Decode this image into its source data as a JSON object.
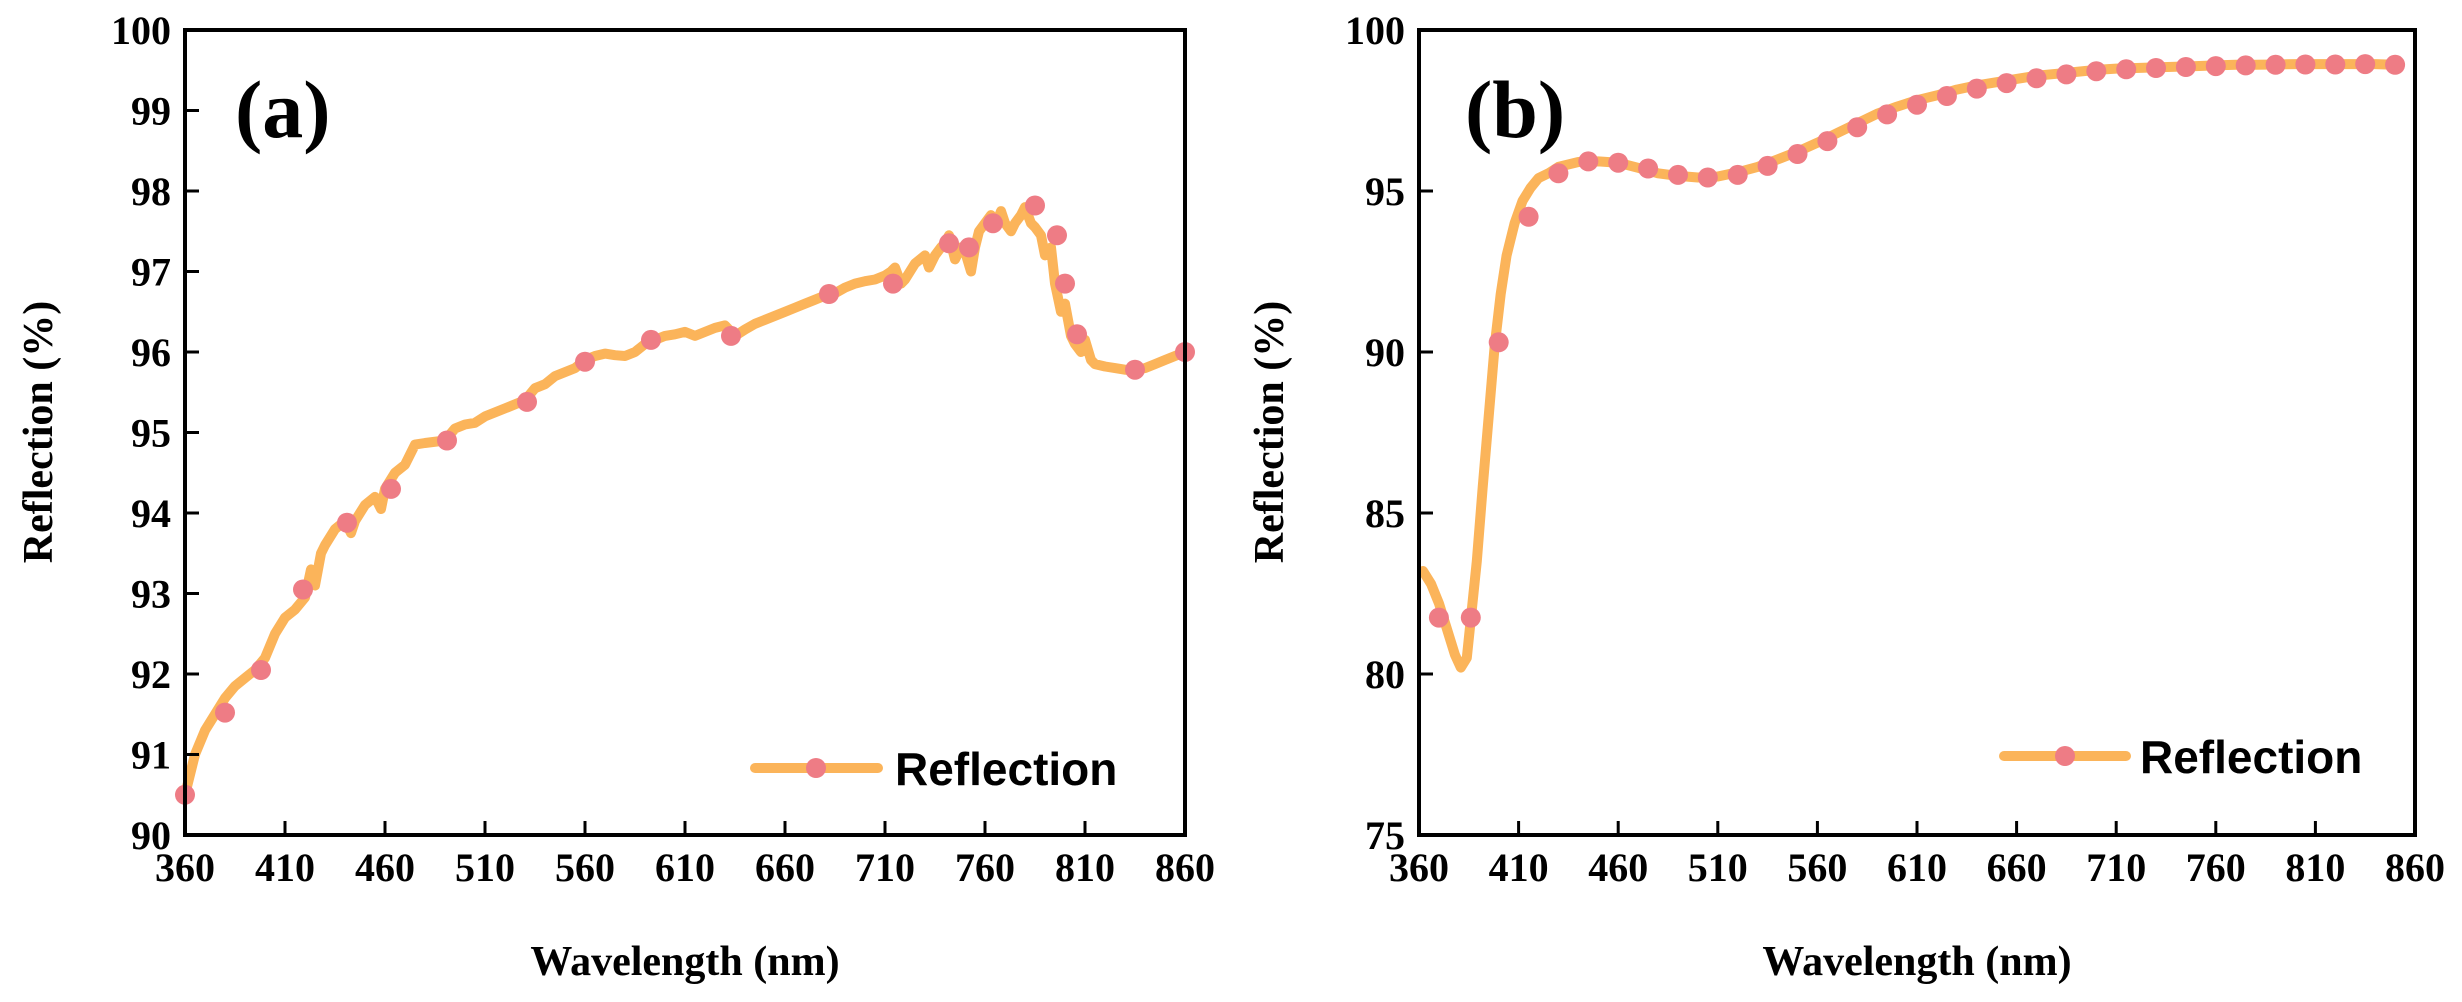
{
  "colors": {
    "line": "#FBB45A",
    "marker": "#EE7C85",
    "axis": "#000000"
  },
  "chart_data": [
    {
      "type": "line",
      "panel_label": "(a)",
      "xlabel": "Wavelength (nm)",
      "ylabel": "Reflection (%)",
      "xlim": [
        360,
        860
      ],
      "ylim": [
        90,
        100
      ],
      "xticks": [
        "360",
        "410",
        "460",
        "510",
        "560",
        "610",
        "660",
        "710",
        "760",
        "810",
        "860"
      ],
      "yticks": [
        "90",
        "91",
        "92",
        "93",
        "94",
        "95",
        "96",
        "97",
        "98",
        "99",
        "100"
      ],
      "legend": {
        "label": "Reflection",
        "position": "bottom-right"
      },
      "series": [
        {
          "name": "Reflection",
          "x": [
            360,
            365,
            370,
            375,
            380,
            385,
            390,
            395,
            400,
            405,
            410,
            415,
            420,
            423,
            425,
            428,
            430,
            435,
            440,
            443,
            445,
            450,
            455,
            458,
            460,
            465,
            470,
            475,
            480,
            490,
            495,
            500,
            505,
            510,
            515,
            520,
            530,
            535,
            540,
            545,
            550,
            555,
            560,
            565,
            570,
            575,
            580,
            585,
            590,
            595,
            600,
            605,
            610,
            615,
            620,
            625,
            630,
            635,
            640,
            645,
            650,
            655,
            660,
            665,
            670,
            675,
            680,
            685,
            690,
            695,
            700,
            705,
            710,
            713,
            715,
            718,
            720,
            725,
            730,
            732,
            735,
            738,
            740,
            742,
            745,
            748,
            750,
            753,
            755,
            757,
            760,
            763,
            765,
            768,
            770,
            773,
            775,
            778,
            780,
            783,
            785,
            788,
            790,
            793,
            795,
            798,
            800,
            803,
            805,
            808,
            810,
            813,
            815,
            820,
            825,
            830,
            835,
            840,
            845,
            850,
            855,
            860
          ],
          "y": [
            90.5,
            91.0,
            91.3,
            91.5,
            91.7,
            91.85,
            91.95,
            92.05,
            92.2,
            92.5,
            92.7,
            92.8,
            92.95,
            93.3,
            93.1,
            93.5,
            93.6,
            93.8,
            93.9,
            93.75,
            93.9,
            94.1,
            94.2,
            94.05,
            94.3,
            94.5,
            94.6,
            94.85,
            94.87,
            94.9,
            95.05,
            95.1,
            95.12,
            95.2,
            95.25,
            95.3,
            95.4,
            95.55,
            95.6,
            95.7,
            95.75,
            95.8,
            95.9,
            95.95,
            95.98,
            95.96,
            95.95,
            96.0,
            96.1,
            96.15,
            96.2,
            96.22,
            96.25,
            96.2,
            96.25,
            96.3,
            96.33,
            96.2,
            96.28,
            96.35,
            96.4,
            96.45,
            96.5,
            96.55,
            96.6,
            96.65,
            96.7,
            96.73,
            96.8,
            96.85,
            96.88,
            96.9,
            96.95,
            97.0,
            97.05,
            96.85,
            96.9,
            97.1,
            97.2,
            97.05,
            97.2,
            97.3,
            97.35,
            97.45,
            97.15,
            97.3,
            97.25,
            97.0,
            97.3,
            97.5,
            97.6,
            97.7,
            97.55,
            97.75,
            97.6,
            97.5,
            97.6,
            97.7,
            97.8,
            97.6,
            97.55,
            97.45,
            97.2,
            97.3,
            96.85,
            96.5,
            96.6,
            96.2,
            96.1,
            96.0,
            96.15,
            95.9,
            95.85,
            95.82,
            95.8,
            95.78,
            95.78,
            95.8,
            95.85,
            95.9,
            95.95,
            96.0
          ]
        }
      ],
      "markers": {
        "x": [
          360,
          380,
          398,
          419,
          441,
          463,
          491,
          531,
          560,
          593,
          633,
          682,
          714,
          742,
          752,
          764,
          785,
          796,
          800,
          806,
          835,
          860
        ],
        "y": [
          90.5,
          91.52,
          92.05,
          93.05,
          93.88,
          94.3,
          94.9,
          95.38,
          95.88,
          96.15,
          96.2,
          96.72,
          96.85,
          97.35,
          97.3,
          97.6,
          97.82,
          97.45,
          96.85,
          96.22,
          95.78,
          96.0
        ]
      }
    },
    {
      "type": "line",
      "panel_label": "(b)",
      "xlabel": "Wavelength (nm)",
      "ylabel": "Reflection (%)",
      "xlim": [
        360,
        860
      ],
      "ylim": [
        75,
        100
      ],
      "xticks": [
        "360",
        "410",
        "460",
        "510",
        "560",
        "610",
        "660",
        "710",
        "760",
        "810",
        "860"
      ],
      "yticks": [
        "75",
        "80",
        "85",
        "90",
        "95",
        "100"
      ],
      "legend": {
        "label": "Reflection",
        "position": "bottom-right"
      },
      "series": [
        {
          "name": "Reflection",
          "x": [
            362,
            366,
            370,
            374,
            378,
            381,
            384,
            386,
            389,
            392,
            395,
            398,
            401,
            404,
            408,
            412,
            416,
            420,
            425,
            430,
            440,
            450,
            460,
            470,
            480,
            490,
            500,
            510,
            520,
            530,
            540,
            550,
            560,
            570,
            580,
            590,
            600,
            610,
            620,
            630,
            640,
            650,
            660,
            670,
            680,
            690,
            700,
            710,
            720,
            730,
            740,
            750,
            760,
            770,
            780,
            790,
            800,
            810,
            820,
            830,
            840,
            850
          ],
          "y": [
            83.2,
            82.8,
            82.2,
            81.4,
            80.6,
            80.2,
            80.5,
            81.7,
            83.5,
            85.8,
            88.0,
            90.2,
            91.8,
            93.0,
            94.0,
            94.7,
            95.1,
            95.4,
            95.55,
            95.75,
            95.9,
            95.92,
            95.88,
            95.72,
            95.55,
            95.47,
            95.42,
            95.45,
            95.58,
            95.75,
            95.98,
            96.22,
            96.5,
            96.8,
            97.1,
            97.4,
            97.62,
            97.82,
            97.97,
            98.15,
            98.28,
            98.38,
            98.48,
            98.58,
            98.64,
            98.7,
            98.76,
            98.8,
            98.82,
            98.84,
            98.86,
            98.88,
            98.9,
            98.92,
            98.92,
            98.93,
            98.94,
            98.94,
            98.94,
            98.94,
            98.94,
            98.92
          ]
        }
      ],
      "markers": {
        "x": [
          370,
          386,
          400,
          415,
          430,
          445,
          460,
          475,
          490,
          505,
          520,
          535,
          550,
          565,
          580,
          595,
          610,
          625,
          640,
          655,
          670,
          685,
          700,
          715,
          730,
          745,
          760,
          775,
          790,
          805,
          820,
          835,
          850
        ],
        "y": [
          81.75,
          81.75,
          90.3,
          94.2,
          95.55,
          95.92,
          95.88,
          95.7,
          95.5,
          95.42,
          95.5,
          95.78,
          96.15,
          96.55,
          96.98,
          97.38,
          97.68,
          97.95,
          98.18,
          98.35,
          98.5,
          98.62,
          98.72,
          98.78,
          98.82,
          98.85,
          98.88,
          98.9,
          98.92,
          98.93,
          98.93,
          98.94,
          98.92
        ]
      }
    }
  ]
}
